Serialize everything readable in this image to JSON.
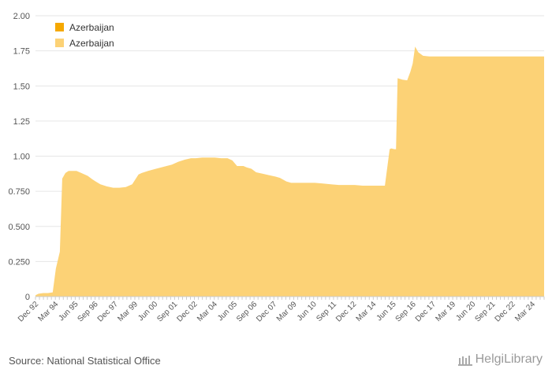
{
  "chart_data": {
    "type": "area",
    "title": "",
    "xlabel": "",
    "ylabel": "",
    "ylim": [
      0,
      2
    ],
    "y_ticks": [
      "2.00",
      "1.75",
      "1.50",
      "1.25",
      "1.00",
      "0.750",
      "0.500",
      "0.250",
      "0"
    ],
    "y_tick_values": [
      2.0,
      1.75,
      1.5,
      1.25,
      1.0,
      0.75,
      0.5,
      0.25,
      0
    ],
    "x_ticks": [
      "Dec 92",
      "Mar 94",
      "Jun 95",
      "Sep 96",
      "Dec 97",
      "Mar 99",
      "Jun 00",
      "Sep 01",
      "Dec 02",
      "Mar 04",
      "Jun 05",
      "Sep 06",
      "Dec 07",
      "Mar 09",
      "Jun 10",
      "Sep 11",
      "Dec 12",
      "Mar 14",
      "Jun 15",
      "Sep 16",
      "Dec 17",
      "Mar 19",
      "Jun 20",
      "Sep 21",
      "Dec 22",
      "Mar 24"
    ],
    "x_range": [
      1992.917,
      2024.917
    ],
    "legend": [
      {
        "name": "Azerbaijan",
        "color": "#f5a800"
      },
      {
        "name": "Azerbaijan",
        "color": "#fcd276"
      }
    ],
    "series": [
      {
        "name": "Azerbaijan",
        "color": "#fcd276",
        "x": [
          1992.917,
          1993.1,
          1993.4,
          1993.7,
          1994.0,
          1994.2,
          1994.45,
          1994.6,
          1994.8,
          1995.0,
          1995.2,
          1995.5,
          1995.8,
          1996.2,
          1996.5,
          1996.7,
          1997.0,
          1997.4,
          1997.8,
          1998.2,
          1998.6,
          1999.0,
          1999.4,
          1999.6,
          2000.0,
          2000.5,
          2001.0,
          2001.5,
          2001.9,
          2002.3,
          2002.7,
          2003.0,
          2003.4,
          2003.8,
          2004.2,
          2004.6,
          2005.0,
          2005.3,
          2005.6,
          2006.0,
          2006.2,
          2006.5,
          2006.8,
          2007.2,
          2007.6,
          2008.0,
          2008.3,
          2008.7,
          2009.0,
          2009.5,
          2010.0,
          2010.5,
          2011.0,
          2011.5,
          2012.0,
          2012.5,
          2013.0,
          2013.5,
          2014.0,
          2014.4,
          2014.7,
          2014.9,
          2015.2,
          2015.3,
          2015.5,
          2015.6,
          2015.7,
          2016.0,
          2016.3,
          2016.5,
          2016.65,
          2016.8,
          2017.0,
          2017.3,
          2017.7,
          2018.5,
          2019.5,
          2020.5,
          2021.5,
          2022.5,
          2023.5,
          2024.5,
          2024.917
        ],
        "values": [
          0.01,
          0.02,
          0.025,
          0.025,
          0.03,
          0.2,
          0.32,
          0.84,
          0.88,
          0.895,
          0.895,
          0.895,
          0.88,
          0.86,
          0.835,
          0.82,
          0.8,
          0.785,
          0.775,
          0.775,
          0.78,
          0.8,
          0.87,
          0.88,
          0.895,
          0.91,
          0.925,
          0.94,
          0.96,
          0.975,
          0.985,
          0.985,
          0.99,
          0.99,
          0.99,
          0.985,
          0.985,
          0.97,
          0.93,
          0.93,
          0.92,
          0.91,
          0.885,
          0.875,
          0.865,
          0.855,
          0.845,
          0.82,
          0.81,
          0.81,
          0.81,
          0.81,
          0.805,
          0.8,
          0.795,
          0.795,
          0.795,
          0.79,
          0.79,
          0.79,
          0.79,
          0.79,
          1.05,
          1.055,
          1.05,
          1.05,
          1.555,
          1.545,
          1.54,
          1.6,
          1.66,
          1.78,
          1.74,
          1.715,
          1.71,
          1.71,
          1.71,
          1.71,
          1.71,
          1.71,
          1.71,
          1.71,
          1.71
        ]
      }
    ]
  },
  "footer": {
    "source": "Source: National Statistical Office",
    "brand": "HelgiLibrary"
  }
}
